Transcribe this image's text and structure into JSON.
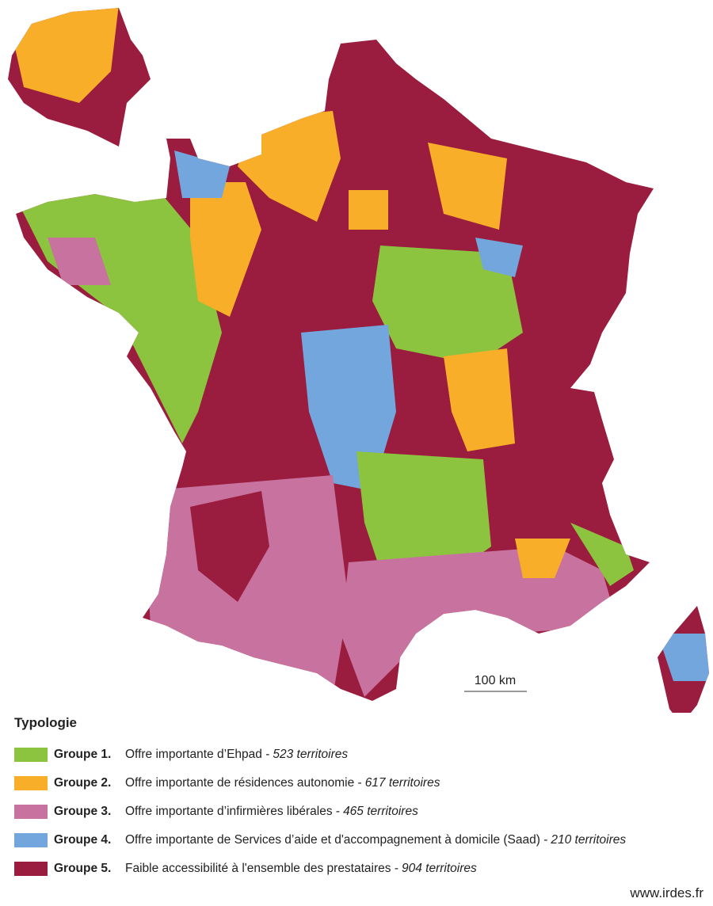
{
  "map": {
    "scale_bar": {
      "label": "100 km"
    }
  },
  "legend": {
    "title": "Typologie",
    "items": [
      {
        "group": "Groupe 1.",
        "description": "Offre importante d’Ehpad -",
        "count": "523 territoires",
        "color": "#8cc43f"
      },
      {
        "group": "Groupe 2.",
        "description": "Offre importante de résidences autonomie -",
        "count": "617 territoires",
        "color": "#f9ae2a"
      },
      {
        "group": "Groupe 3.",
        "description": "Offre importante d’infirmières libérales -",
        "count": "465 territoires",
        "color": "#c8739f"
      },
      {
        "group": "Groupe 4.",
        "description": "Offre importante de Services d’aide et d'accompagnement à domicile (Saad) -",
        "count": "210 territoires",
        "color": "#72a6dc"
      },
      {
        "group": "Groupe 5.",
        "description": "Faible accessibilité à l'ensemble des prestataires -",
        "count": "904 territoires",
        "color": "#9a1c3e"
      }
    ]
  },
  "footer": {
    "source": "www.irdes.fr"
  }
}
